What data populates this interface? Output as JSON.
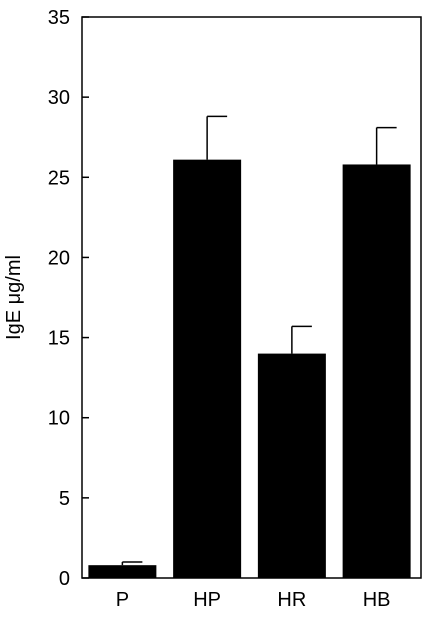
{
  "chart_data": {
    "type": "bar",
    "categories": [
      "P",
      "HP",
      "HR",
      "HB"
    ],
    "values": [
      0.8,
      26.1,
      14.0,
      25.8
    ],
    "error_upper": [
      1.0,
      28.8,
      15.7,
      28.1
    ],
    "ylabel": "IgE μg/ml",
    "ylim": [
      0,
      35
    ],
    "yticks": [
      0,
      5,
      10,
      15,
      20,
      25,
      30,
      35
    ],
    "grid": false,
    "colors": {
      "bar": "#000000",
      "axis": "#000000",
      "background": "#ffffff"
    }
  }
}
